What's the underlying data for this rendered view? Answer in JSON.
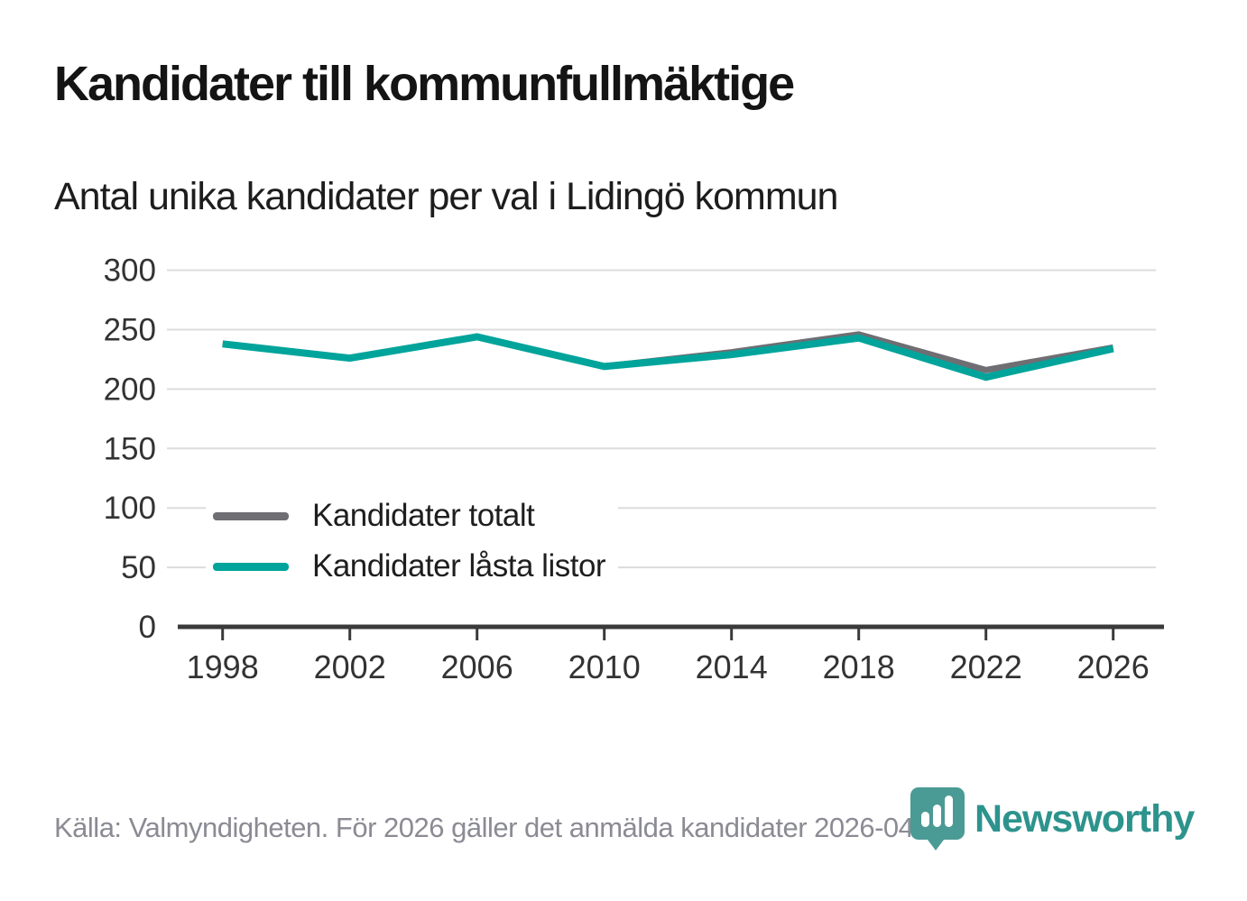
{
  "title": "Kandidater till kommunfullmäktige",
  "subtitle": "Antal unika kandidater per val i Lidingö kommun",
  "footer": {
    "source_text": "Källa: Valmyndigheten. För 2026 gäller det anmälda kandidater 2026-04-10."
  },
  "logo": {
    "text": "Newsworthy",
    "mark_color": "#4a9a95",
    "text_color": "#2d938d"
  },
  "colors": {
    "grid": "#dcdcdc",
    "axis": "#3a3a3a",
    "tick_label": "#333333",
    "series_total": "#6e6e73",
    "series_locked": "#00a49b"
  },
  "chart_data": {
    "type": "line",
    "x": [
      1998,
      2002,
      2006,
      2010,
      2014,
      2018,
      2022,
      2026
    ],
    "series": [
      {
        "name": "Kandidater totalt",
        "color": "#6e6e73",
        "values": [
          238,
          226,
          244,
          219,
          231,
          246,
          216,
          235
        ]
      },
      {
        "name": "Kandidater låsta listor",
        "color": "#00a49b",
        "values": [
          238,
          226,
          244,
          219,
          229,
          243,
          210,
          234
        ]
      }
    ],
    "ylim": [
      0,
      300
    ],
    "yticks": [
      0,
      50,
      100,
      150,
      200,
      250,
      300
    ],
    "grid": true,
    "legend_position": "inside-lower-left"
  }
}
